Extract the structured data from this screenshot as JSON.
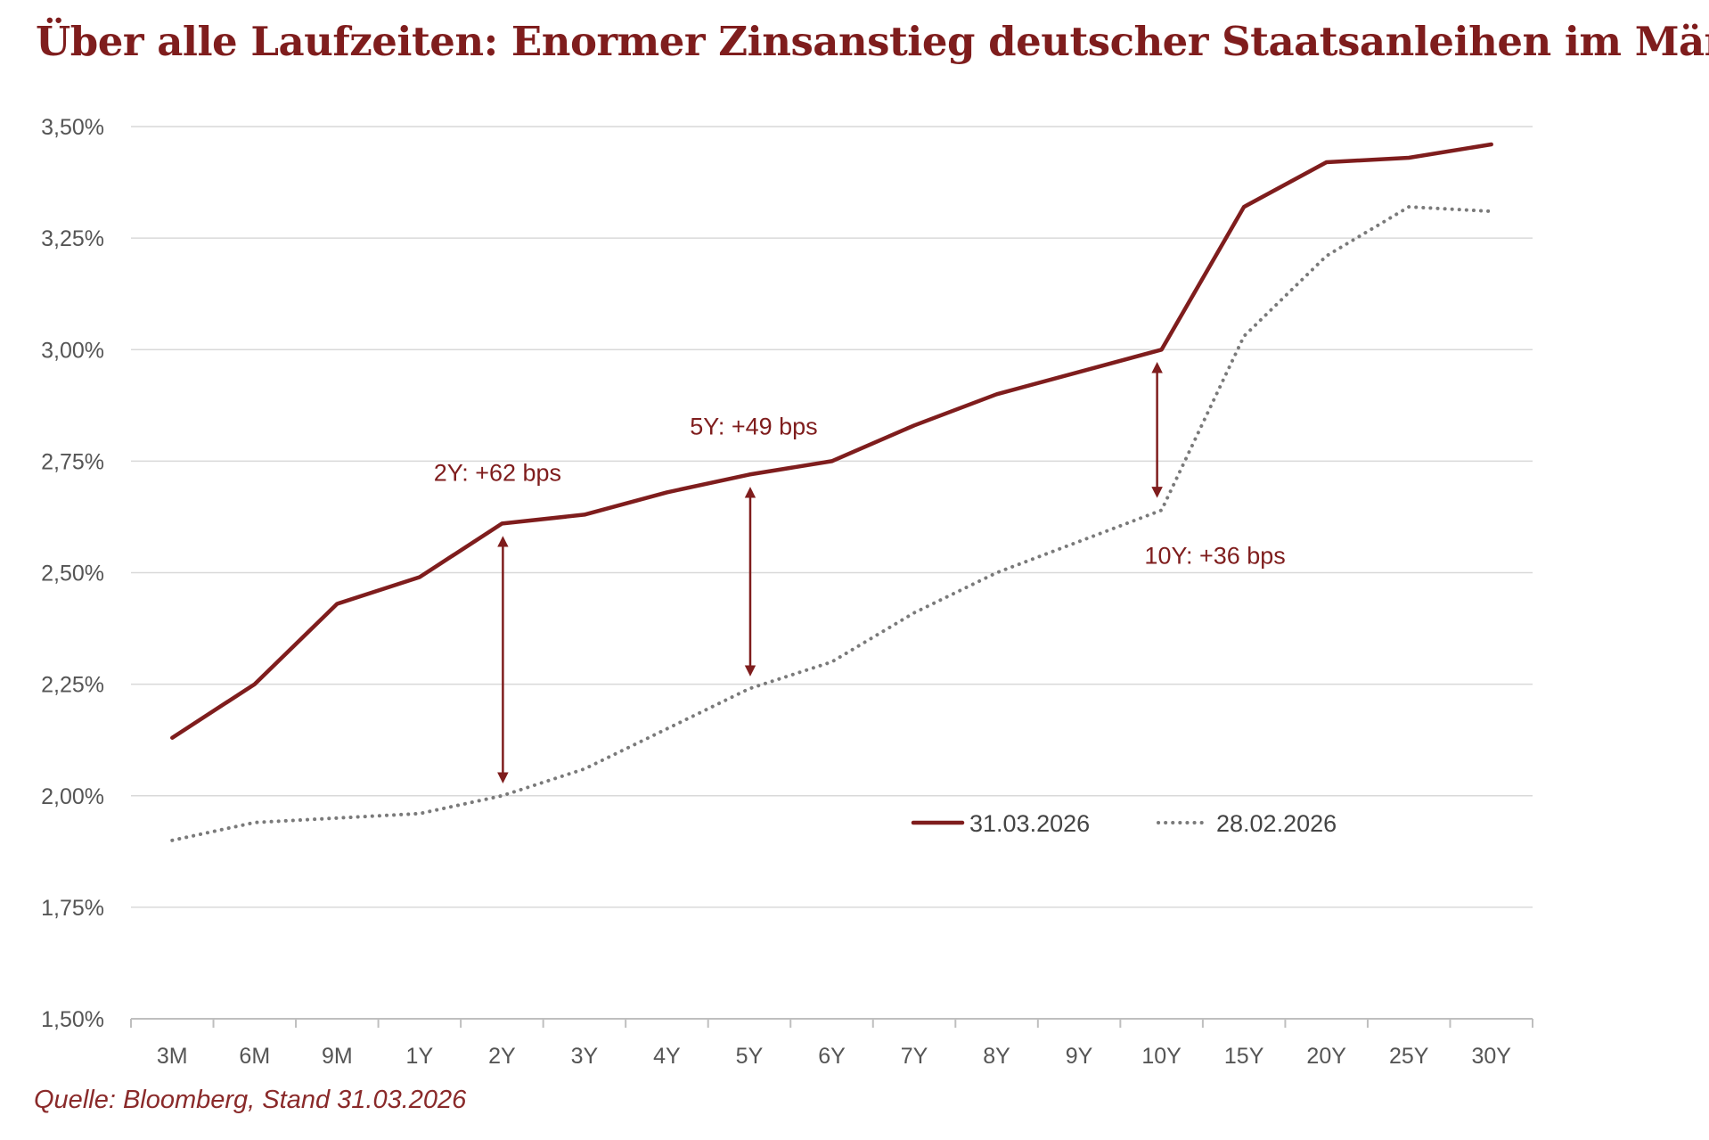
{
  "chart_data": {
    "type": "line",
    "title": "Über alle Laufzeiten: Enormer Zinsanstieg deutscher Staatsanleihen im März",
    "source": "Quelle: Bloomberg, Stand 31.03.2026",
    "categories": [
      "3M",
      "6M",
      "9M",
      "1Y",
      "2Y",
      "3Y",
      "4Y",
      "5Y",
      "6Y",
      "7Y",
      "8Y",
      "9Y",
      "10Y",
      "15Y",
      "20Y",
      "25Y",
      "30Y"
    ],
    "series": [
      {
        "name": "31.03.2026",
        "style": "solid",
        "color": "#7f1d1d",
        "values": [
          2.13,
          2.25,
          2.43,
          2.49,
          2.61,
          2.63,
          2.68,
          2.72,
          2.75,
          2.83,
          2.9,
          2.95,
          3.0,
          3.32,
          3.42,
          3.43,
          3.46
        ]
      },
      {
        "name": "28.02.2026",
        "style": "dotted",
        "color": "#7a7a7a",
        "values": [
          1.9,
          1.94,
          1.95,
          1.96,
          2.0,
          2.06,
          2.15,
          2.24,
          2.3,
          2.41,
          2.5,
          2.57,
          2.64,
          3.03,
          3.21,
          3.32,
          3.31
        ]
      }
    ],
    "ylim": [
      1.5,
      3.5
    ],
    "yticks": [
      1.5,
      1.75,
      2.0,
      2.25,
      2.5,
      2.75,
      3.0,
      3.25,
      3.5
    ],
    "ytick_labels": [
      "1,50%",
      "1,75%",
      "2,00%",
      "2,25%",
      "2,50%",
      "2,75%",
      "3,00%",
      "3,25%",
      "3,50%"
    ],
    "grid": true,
    "legend_position": "center-right",
    "annotations": [
      {
        "text": "2Y: +62 bps",
        "category": "2Y",
        "from": 2.0,
        "to": 2.61
      },
      {
        "text": "5Y: +49 bps",
        "category": "5Y",
        "from": 2.24,
        "to": 2.72
      },
      {
        "text": "10Y: +36 bps",
        "category": "10Y",
        "from": 2.64,
        "to": 3.0
      }
    ]
  }
}
